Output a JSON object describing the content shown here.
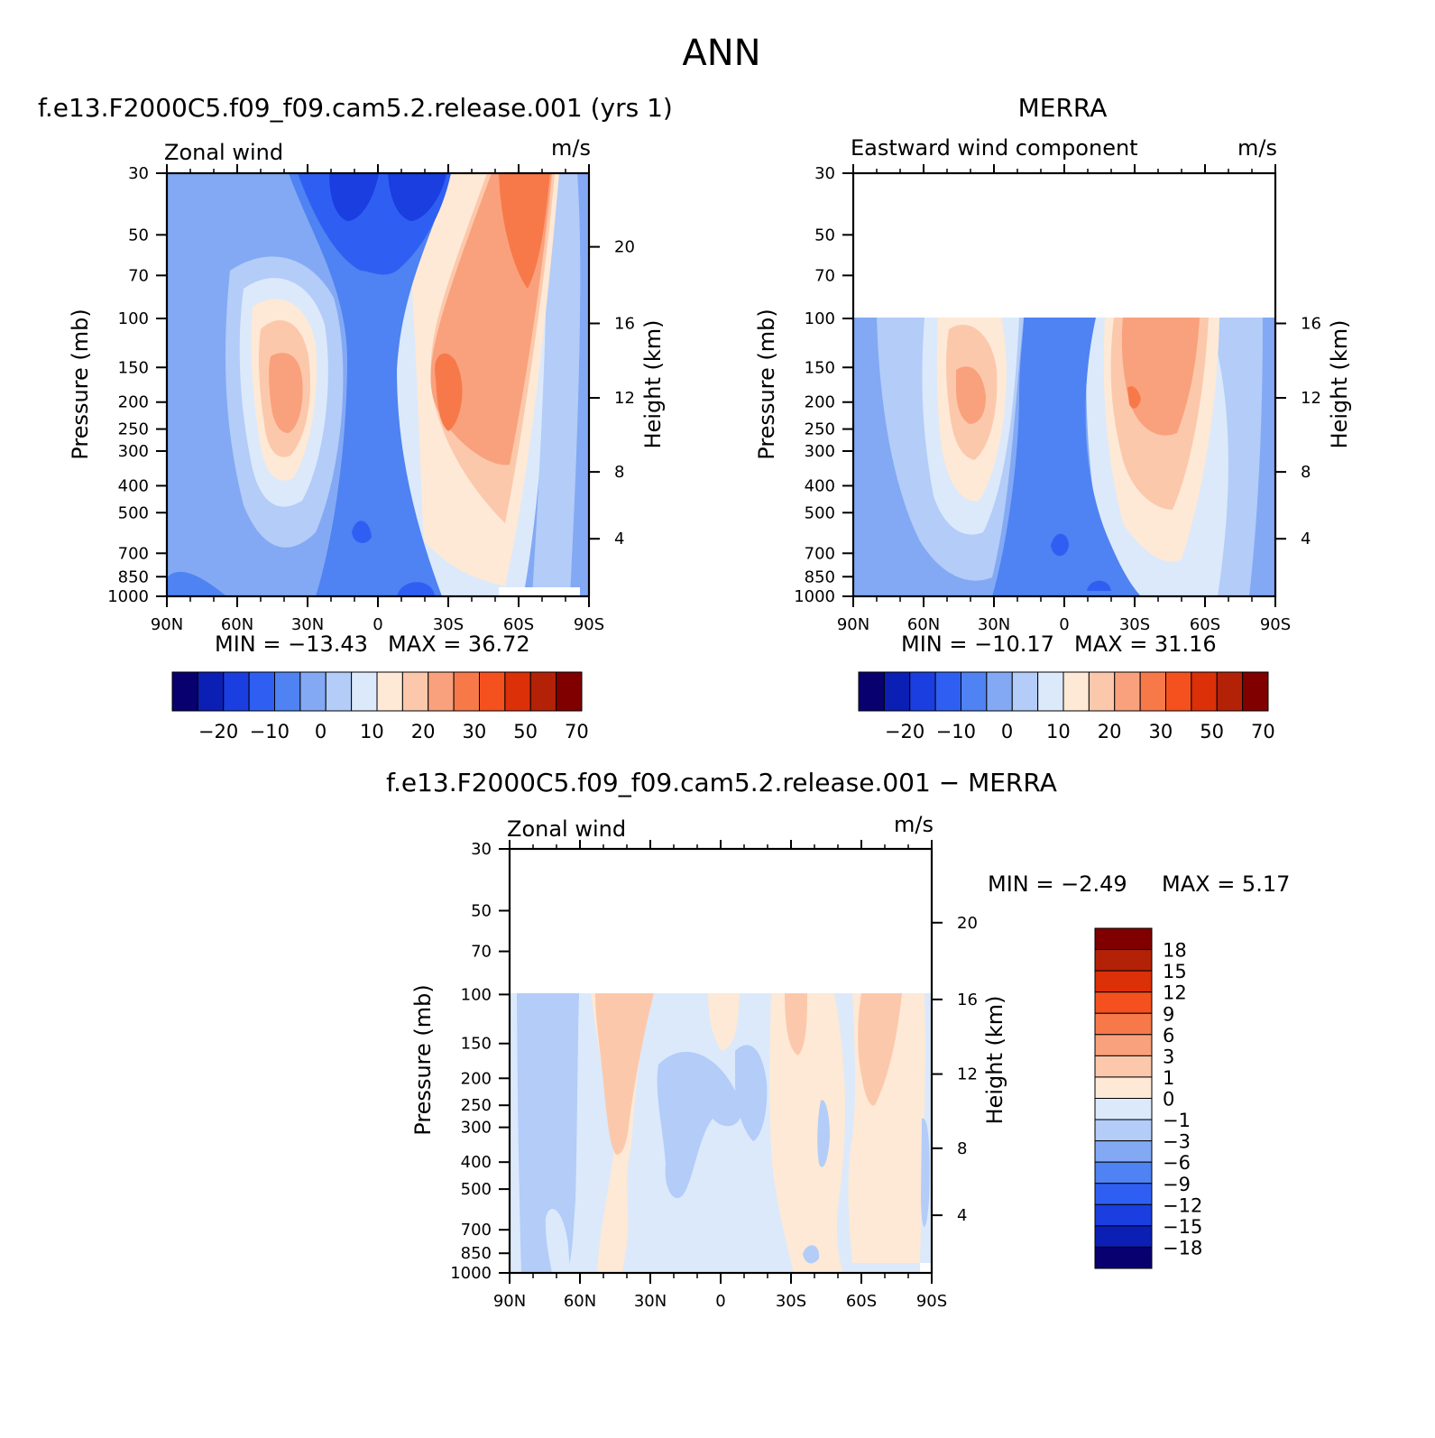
{
  "page_title": "ANN",
  "diff_title": "f.e13.F2000C5.f09_f09.cam5.2.release.001 − MERRA",
  "panels": {
    "model": {
      "title": "f.e13.F2000C5.f09_f09.cam5.2.release.001 (yrs 1)",
      "left_label": "Zonal wind",
      "units": "m/s",
      "ylabel": "Pressure (mb)",
      "y2label": "Height (km)",
      "min_text": "MIN =  −13.43",
      "max_text": "MAX =   36.72",
      "fill_top_mb": 30
    },
    "merra": {
      "title": "MERRA",
      "left_label": "Eastward wind component",
      "units": "m/s",
      "ylabel": "Pressure (mb)",
      "y2label": "Height (km)",
      "min_text": "MIN =  −10.17",
      "max_text": "MAX =   31.16",
      "fill_top_mb": 100
    },
    "diff": {
      "left_label": "Zonal wind",
      "units": "m/s",
      "ylabel": "Pressure (mb)",
      "y2label": "Height (km)",
      "min_text": "MIN =    −2.49",
      "max_text": "MAX =     5.17",
      "fill_top_mb": 100
    }
  },
  "axes": {
    "x_ticks": [
      "90N",
      "60N",
      "30N",
      "0",
      "30S",
      "60S",
      "90S"
    ],
    "y_ticks": [
      "30",
      "50",
      "70",
      "100",
      "150",
      "200",
      "250",
      "300",
      "400",
      "500",
      "700",
      "850",
      "1000"
    ],
    "height_ticks_full": [
      "20",
      "16",
      "12",
      "8",
      "4"
    ],
    "height_ticks_trunc": [
      "16",
      "12",
      "8",
      "4"
    ]
  },
  "colorbars": {
    "abs_labels": [
      "−20",
      "−10",
      "0",
      "10",
      "20",
      "30",
      "50",
      "70"
    ],
    "abs_colors": [
      "#08006f",
      "#0b1fb4",
      "#1a3ee0",
      "#2f5ff2",
      "#4f82f2",
      "#83a9f4",
      "#b3ccf8",
      "#dbe9fb",
      "#fde9d6",
      "#fcc8ab",
      "#f9a17c",
      "#f7794a",
      "#f4511f",
      "#db3008",
      "#b32207",
      "#800000"
    ],
    "diff_labels": [
      "18",
      "15",
      "12",
      "9",
      "6",
      "3",
      "1",
      "0",
      "−1",
      "−3",
      "−6",
      "−9",
      "−12",
      "−15",
      "−18"
    ],
    "diff_colors_top_to_bottom": [
      "#800000",
      "#b32207",
      "#db3008",
      "#f4511f",
      "#f7794a",
      "#f9a17c",
      "#fcc8ab",
      "#fde9d6",
      "#dbe9fb",
      "#b3ccf8",
      "#83a9f4",
      "#4f82f2",
      "#2f5ff2",
      "#1a3ee0",
      "#0b1fb4",
      "#08006f"
    ]
  },
  "chart_data": [
    {
      "type": "heatmap",
      "title": "f.e13.F2000C5.f09_f09.cam5.2.release.001 (yrs 1)",
      "variable": "Zonal wind",
      "units": "m/s",
      "xlabel": "",
      "ylabel": "Pressure (mb)",
      "y2label": "Height (km)",
      "x_range": [
        "90N",
        "90S"
      ],
      "y_range_mb": [
        1000,
        30
      ],
      "y_scale": "log",
      "min": -13.43,
      "max": 36.72
    },
    {
      "type": "heatmap",
      "title": "MERRA",
      "variable": "Eastward wind component",
      "units": "m/s",
      "xlabel": "",
      "ylabel": "Pressure (mb)",
      "y2label": "Height (km)",
      "x_range": [
        "90N",
        "90S"
      ],
      "y_range_mb": [
        1000,
        30
      ],
      "y_scale": "log",
      "min": -10.17,
      "max": 31.16
    },
    {
      "type": "heatmap",
      "title": "f.e13.F2000C5.f09_f09.cam5.2.release.001 − MERRA",
      "variable": "Zonal wind",
      "units": "m/s",
      "xlabel": "",
      "ylabel": "Pressure (mb)",
      "y2label": "Height (km)",
      "x_range": [
        "90N",
        "90S"
      ],
      "y_range_mb": [
        1000,
        30
      ],
      "y_scale": "log",
      "min": -2.49,
      "max": 5.17
    }
  ]
}
